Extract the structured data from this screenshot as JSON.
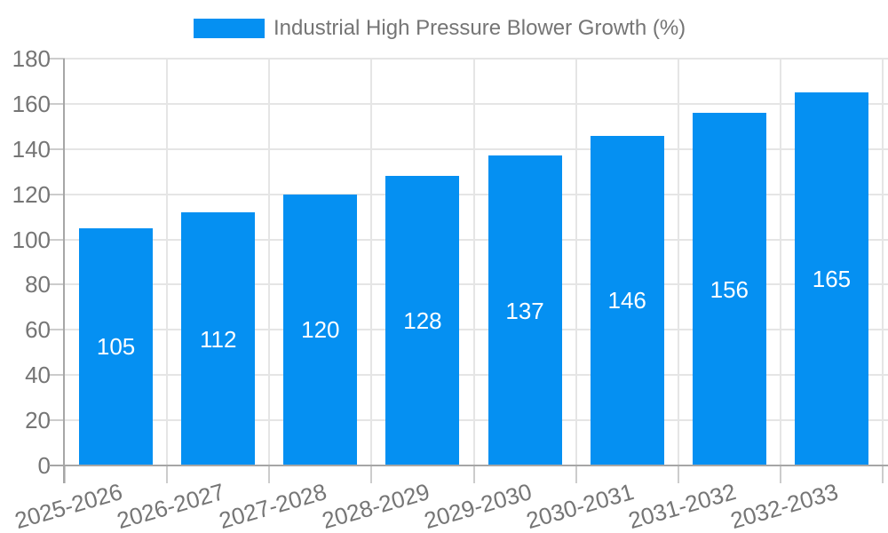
{
  "legend": {
    "label": "Industrial High Pressure Blower Growth (%)"
  },
  "chart_data": {
    "type": "bar",
    "title": "",
    "xlabel": "",
    "ylabel": "",
    "categories": [
      "2025-2026",
      "2026-2027",
      "2027-2028",
      "2028-2029",
      "2029-2030",
      "2030-2031",
      "2031-2032",
      "2032-2033"
    ],
    "values": [
      105,
      112,
      120,
      128,
      137,
      146,
      156,
      165
    ],
    "series_name": "Industrial High Pressure Blower Growth (%)",
    "ylim": [
      0,
      180
    ],
    "ytick_step": 20,
    "ytick_labels": [
      "0",
      "20",
      "40",
      "60",
      "80",
      "100",
      "120",
      "140",
      "160",
      "180"
    ],
    "grid": true,
    "legend_position": "top-center",
    "value_label_position": "inside-middle",
    "x_tick_rotation_deg": -16
  },
  "colors": {
    "bar": "#0590f2",
    "bar_label": "#ffffff",
    "axis_text": "#757575",
    "axis_line": "#a6a6a6",
    "grid_line": "#e5e5e5",
    "tick_line": "#cccccc",
    "background": "#ffffff"
  }
}
